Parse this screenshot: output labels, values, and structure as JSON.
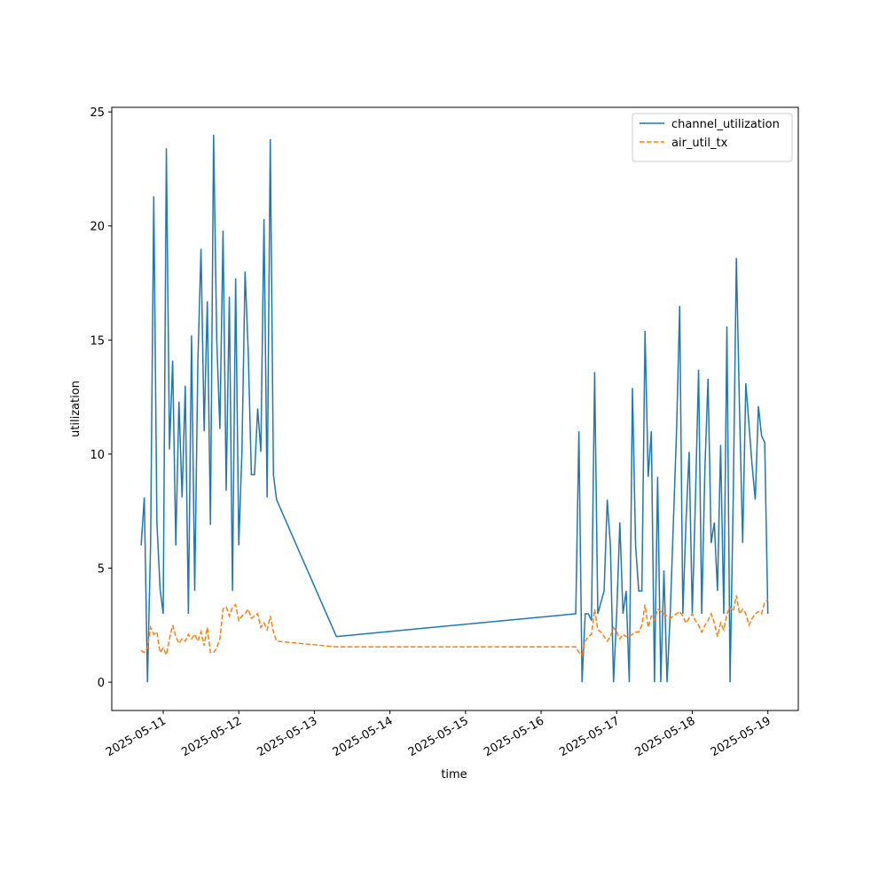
{
  "chart_data": {
    "type": "line",
    "xlabel": "time",
    "ylabel": "utilization",
    "x": [
      "2025-05-10T17:00",
      "2025-05-10T18:00",
      "2025-05-10T19:00",
      "2025-05-10T20:00",
      "2025-05-10T21:00",
      "2025-05-10T22:00",
      "2025-05-10T23:00",
      "2025-05-11T00:00",
      "2025-05-11T01:00",
      "2025-05-11T02:00",
      "2025-05-11T03:00",
      "2025-05-11T04:00",
      "2025-05-11T05:00",
      "2025-05-11T06:00",
      "2025-05-11T07:00",
      "2025-05-11T08:00",
      "2025-05-11T09:00",
      "2025-05-11T10:00",
      "2025-05-11T11:00",
      "2025-05-11T12:00",
      "2025-05-11T13:00",
      "2025-05-11T14:00",
      "2025-05-11T15:00",
      "2025-05-11T16:00",
      "2025-05-11T17:00",
      "2025-05-11T18:00",
      "2025-05-11T19:00",
      "2025-05-11T20:00",
      "2025-05-11T21:00",
      "2025-05-11T22:00",
      "2025-05-11T23:00",
      "2025-05-12T00:00",
      "2025-05-12T01:00",
      "2025-05-12T02:00",
      "2025-05-12T03:00",
      "2025-05-12T04:00",
      "2025-05-12T05:00",
      "2025-05-12T06:00",
      "2025-05-12T07:00",
      "2025-05-12T08:00",
      "2025-05-12T09:00",
      "2025-05-12T10:00",
      "2025-05-12T11:00",
      "2025-05-12T12:00",
      "2025-05-13T07:00",
      "2025-05-16T11:00",
      "2025-05-16T12:00",
      "2025-05-16T13:00",
      "2025-05-16T14:00",
      "2025-05-16T15:00",
      "2025-05-16T16:00",
      "2025-05-16T17:00",
      "2025-05-16T18:00",
      "2025-05-16T19:00",
      "2025-05-16T20:00",
      "2025-05-16T21:00",
      "2025-05-16T22:00",
      "2025-05-16T23:00",
      "2025-05-17T00:00",
      "2025-05-17T01:00",
      "2025-05-17T02:00",
      "2025-05-17T03:00",
      "2025-05-17T04:00",
      "2025-05-17T05:00",
      "2025-05-17T06:00",
      "2025-05-17T07:00",
      "2025-05-17T08:00",
      "2025-05-17T09:00",
      "2025-05-17T10:00",
      "2025-05-17T11:00",
      "2025-05-17T12:00",
      "2025-05-17T13:00",
      "2025-05-17T14:00",
      "2025-05-17T15:00",
      "2025-05-17T16:00",
      "2025-05-17T17:00",
      "2025-05-17T18:00",
      "2025-05-17T19:00",
      "2025-05-17T20:00",
      "2025-05-17T21:00",
      "2025-05-17T22:00",
      "2025-05-17T23:00",
      "2025-05-18T00:00",
      "2025-05-18T01:00",
      "2025-05-18T02:00",
      "2025-05-18T03:00",
      "2025-05-18T04:00",
      "2025-05-18T05:00",
      "2025-05-18T06:00",
      "2025-05-18T07:00",
      "2025-05-18T08:00",
      "2025-05-18T09:00",
      "2025-05-18T10:00",
      "2025-05-18T11:00",
      "2025-05-18T12:00",
      "2025-05-18T13:00",
      "2025-05-18T14:00",
      "2025-05-18T15:00",
      "2025-05-18T16:00",
      "2025-05-18T17:00",
      "2025-05-18T18:00",
      "2025-05-18T19:00",
      "2025-05-18T20:00",
      "2025-05-18T21:00",
      "2025-05-18T22:00",
      "2025-05-18T23:00",
      "2025-05-19T00:00"
    ],
    "series": [
      {
        "name": "channel_utilization",
        "color": "#1f77b4",
        "linestyle": "solid",
        "values": [
          6,
          8.1,
          0,
          6.1,
          21.3,
          7.0,
          4.1,
          3.0,
          23.4,
          10.2,
          14.1,
          6.0,
          12.3,
          8.1,
          13.0,
          3.0,
          15.2,
          4.0,
          14.0,
          19.0,
          11.0,
          16.7,
          6.9,
          24.0,
          15.0,
          11.1,
          19.8,
          8.4,
          16.9,
          4.0,
          17.7,
          6.0,
          10.1,
          18.0,
          14.5,
          9.1,
          9.1,
          12.0,
          10.1,
          20.3,
          8.1,
          23.8,
          9.1,
          8.0,
          2.0,
          3.0,
          11.0,
          0,
          3.0,
          3.0,
          2.7,
          13.6,
          3.0,
          3.5,
          4.0,
          8.0,
          6.0,
          0,
          3.0,
          7.0,
          3.0,
          4.0,
          0,
          12.9,
          6.0,
          4.0,
          4.0,
          15.4,
          9.0,
          11.0,
          0,
          9.0,
          0,
          4.9,
          0,
          3.0,
          7.0,
          11.0,
          16.5,
          3.0,
          7.0,
          10.1,
          3.0,
          8.0,
          13.7,
          3.0,
          9.3,
          13.3,
          6.1,
          7.0,
          4.0,
          10.4,
          3.0,
          15.6,
          0,
          8.0,
          18.6,
          12.0,
          6.1,
          13.1,
          11.3,
          9.5,
          8.0,
          12.1,
          10.8,
          10.5,
          3.0
        ]
      },
      {
        "name": "air_util_tx",
        "color": "#ff7f0e",
        "linestyle": "dashed",
        "values": [
          1.4,
          1.3,
          1.5,
          2.4,
          2.1,
          2.2,
          1.3,
          1.5,
          1.2,
          1.9,
          2.5,
          2.0,
          1.7,
          1.9,
          1.8,
          2.1,
          1.9,
          2.1,
          1.8,
          2.2,
          1.6,
          2.4,
          1.3,
          1.3,
          1.5,
          1.9,
          3.2,
          3.3,
          2.9,
          3.3,
          3.4,
          2.7,
          2.9,
          3.0,
          3.2,
          2.8,
          2.9,
          3.0,
          2.4,
          2.6,
          2.3,
          2.9,
          2.2,
          1.8,
          1.55,
          1.55,
          1.3,
          1.2,
          1.8,
          2.0,
          2.1,
          3.2,
          2.3,
          2.2,
          2.0,
          1.8,
          2.0,
          2.4,
          2.2,
          1.9,
          2.1,
          2.0,
          2.0,
          2.1,
          2.2,
          2.2,
          2.5,
          3.4,
          2.4,
          2.9,
          2.7,
          3.2,
          3.1,
          3.0,
          2.9,
          2.8,
          2.9,
          3.0,
          3.1,
          2.9,
          2.6,
          2.8,
          3.0,
          2.7,
          2.5,
          2.2,
          2.5,
          2.7,
          3.0,
          2.6,
          2.0,
          2.6,
          2.3,
          3.0,
          3.3,
          3.1,
          3.8,
          3.0,
          3.2,
          3.0,
          2.5,
          2.8,
          3.0,
          3.1,
          3.0,
          3.5,
          3.6
        ]
      }
    ],
    "xlim": [
      "2025-05-10T07:40",
      "2025-05-19T09:40"
    ],
    "xticks": [
      "2025-05-11",
      "2025-05-12",
      "2025-05-13",
      "2025-05-14",
      "2025-05-15",
      "2025-05-16",
      "2025-05-17",
      "2025-05-18",
      "2025-05-19"
    ],
    "ylim": [
      -1.24,
      25.2
    ],
    "yticks": [
      0,
      5,
      10,
      15,
      20,
      25
    ],
    "legend": "upper right",
    "grid": false
  }
}
